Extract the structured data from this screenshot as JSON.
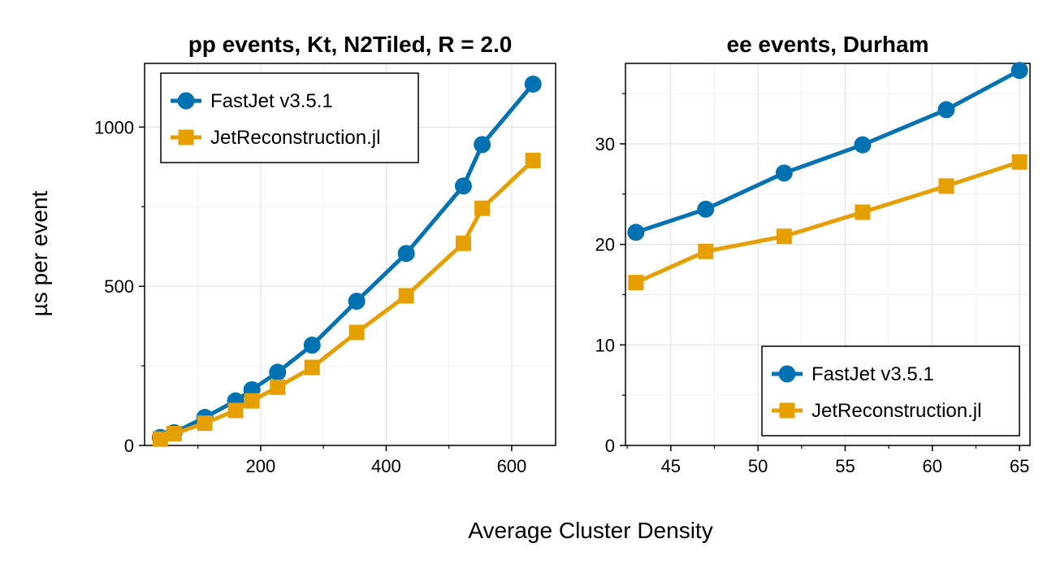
{
  "figure": {
    "ylabel": "µs per event",
    "xlabel": "Average Cluster Density"
  },
  "chart_data": [
    {
      "type": "line",
      "title": "pp events, Kt, N2Tiled, R = 2.0",
      "xlabel": "",
      "ylabel": "µs per event",
      "xlim": [
        15,
        670
      ],
      "ylim": [
        0,
        1200
      ],
      "xticks": [
        200,
        400,
        600
      ],
      "xminor": [
        100,
        300,
        500
      ],
      "yticks": [
        0,
        500,
        1000
      ],
      "yminor": [
        250,
        750
      ],
      "grid": true,
      "legend_position": "top-left",
      "series": [
        {
          "name": "FastJet v3.5.1",
          "color": "#0072B2",
          "marker": "circle",
          "x": [
            40,
            62,
            111,
            160,
            186,
            227,
            282,
            353,
            432,
            523,
            553,
            634
          ],
          "y": [
            25,
            40,
            88,
            140,
            175,
            230,
            315,
            453,
            603,
            815,
            945,
            1135
          ]
        },
        {
          "name": "JetReconstruction.jl",
          "color": "#E69F00",
          "marker": "square",
          "x": [
            40,
            62,
            111,
            160,
            186,
            227,
            282,
            353,
            432,
            523,
            553,
            634
          ],
          "y": [
            20,
            37,
            70,
            110,
            140,
            183,
            245,
            355,
            470,
            635,
            745,
            895
          ]
        }
      ]
    },
    {
      "type": "line",
      "title": "ee events, Durham",
      "xlabel": "",
      "ylabel": "",
      "xlim": [
        42.4,
        65.6
      ],
      "ylim": [
        0,
        38
      ],
      "xticks": [
        45,
        50,
        55,
        60,
        65
      ],
      "xminor": [
        42.5,
        47.5,
        52.5,
        57.5,
        62.5
      ],
      "yticks": [
        0,
        10,
        20,
        30
      ],
      "yminor": [
        5,
        15,
        25,
        35
      ],
      "grid": true,
      "legend_position": "bottom-right",
      "series": [
        {
          "name": "FastJet v3.5.1",
          "color": "#0072B2",
          "marker": "circle",
          "x": [
            43,
            47,
            51.5,
            56,
            60.8,
            65
          ],
          "y": [
            21.2,
            23.5,
            27.1,
            29.9,
            33.4,
            37.3
          ]
        },
        {
          "name": "JetReconstruction.jl",
          "color": "#E69F00",
          "marker": "square",
          "x": [
            43,
            47,
            51.5,
            56,
            60.8,
            65
          ],
          "y": [
            16.2,
            19.3,
            20.8,
            23.2,
            25.8,
            28.2
          ]
        }
      ]
    }
  ]
}
